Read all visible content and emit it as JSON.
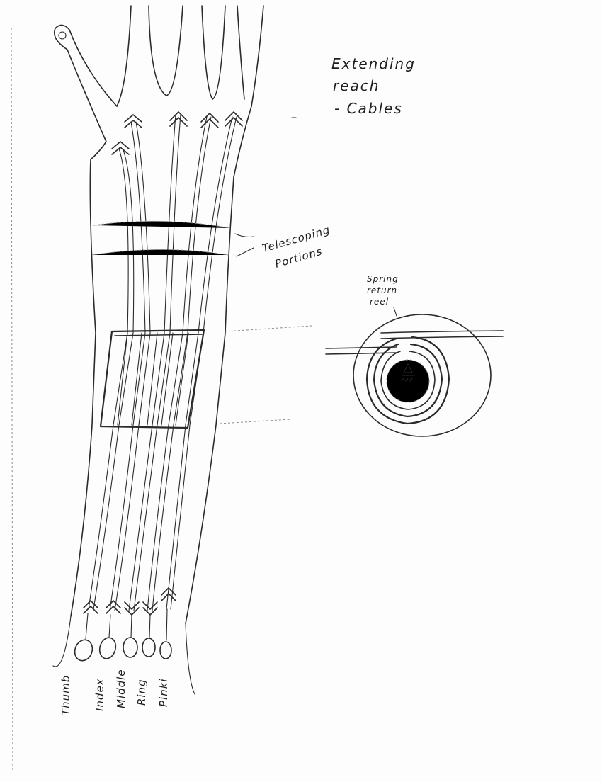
{
  "title": {
    "line1": "Extending",
    "line2": "reach",
    "line3": "- Cables"
  },
  "callouts": {
    "telescoping_line1": "Telescoping",
    "telescoping_line2": "Portions",
    "reel_line1": "Spring",
    "reel_line2": "return",
    "reel_line3": "reel"
  },
  "fingers": [
    {
      "label": "Thumb"
    },
    {
      "label": "Index"
    },
    {
      "label": "Middle"
    },
    {
      "label": "Ring"
    },
    {
      "label": "Pinki"
    }
  ]
}
